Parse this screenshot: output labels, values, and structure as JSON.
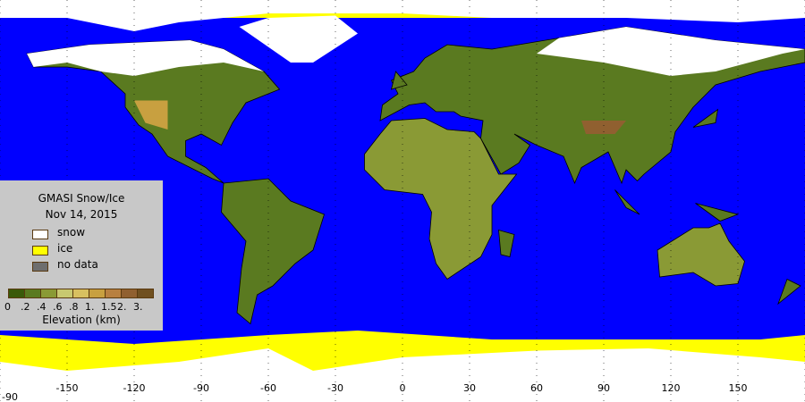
{
  "legend": {
    "title": "GMASI Snow/Ice",
    "date": "Nov 14, 2015",
    "items": [
      {
        "label": "snow",
        "color": "#ffffff"
      },
      {
        "label": "ice",
        "color": "#ffff00"
      },
      {
        "label": "no data",
        "color": "#6e6e6e"
      }
    ],
    "elevation_colors": [
      "#3a5a0a",
      "#5a7a20",
      "#8a9a35",
      "#c8c870",
      "#d8c060",
      "#c8a040",
      "#b88040",
      "#906030",
      "#705020"
    ],
    "elevation_ticks": [
      "0",
      ".2",
      ".4",
      ".6",
      ".8",
      "1.",
      "1.5",
      "2.",
      "3."
    ],
    "elevation_label": "Elevation (km)"
  },
  "axis": {
    "longitude_labels": [
      "-150",
      "-120",
      "-90",
      "-60",
      "-30",
      "0",
      "30",
      "60",
      "90",
      "120",
      "150"
    ],
    "latitude_label": "-90"
  },
  "colors": {
    "ocean": "#0000ff",
    "snow": "#ffffff",
    "ice": "#ffff00",
    "land": "#5a7a20"
  }
}
